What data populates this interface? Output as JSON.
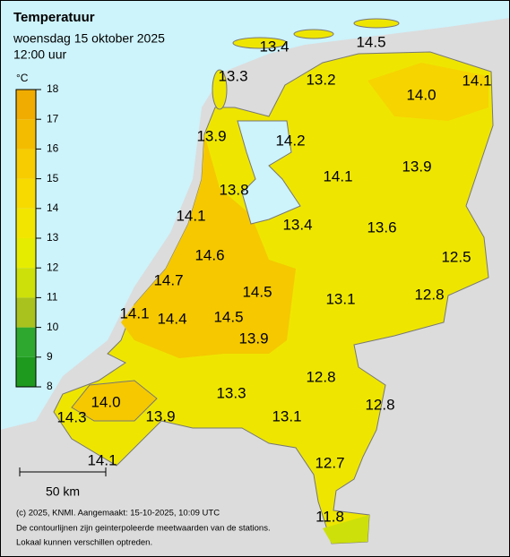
{
  "header": {
    "title": "Temperatuur",
    "date": "woensdag 15 oktober 2025",
    "time": "12:00 uur"
  },
  "legend": {
    "unit": "°C",
    "ticks": [
      8,
      9,
      10,
      11,
      12,
      13,
      14,
      15,
      16,
      17,
      18
    ],
    "colors": [
      "#1e9a1e",
      "#2fa82f",
      "#a9c21e",
      "#cde00a",
      "#e6ec00",
      "#f2e600",
      "#f6da00",
      "#f7cc00",
      "#f4bc00",
      "#f0ac00"
    ]
  },
  "stations": [
    "13.4",
    "14.5",
    "13.3",
    "13.2",
    "14.0",
    "14.1",
    "13.9",
    "14.2",
    "14.1",
    "13.9",
    "13.8",
    "14.1",
    "13.4",
    "13.6",
    "12.5",
    "14.6",
    "14.7",
    "14.5",
    "12.8",
    "13.1",
    "14.1",
    "14.4",
    "14.5",
    "13.9",
    "12.8",
    "14.0",
    "13.3",
    "12.8",
    "14.3",
    "13.9",
    "13.1",
    "14.1",
    "12.7",
    "11.8"
  ],
  "scale": {
    "label": "50 km"
  },
  "footer": [
    "(c) 2025, KNMI. Aangemaakt: 15-10-2025, 10:09 UTC",
    "De contourlijnen zijn geinterpoleerde meetwaarden van de stations.",
    "Lokaal kunnen verschillen optreden."
  ]
}
